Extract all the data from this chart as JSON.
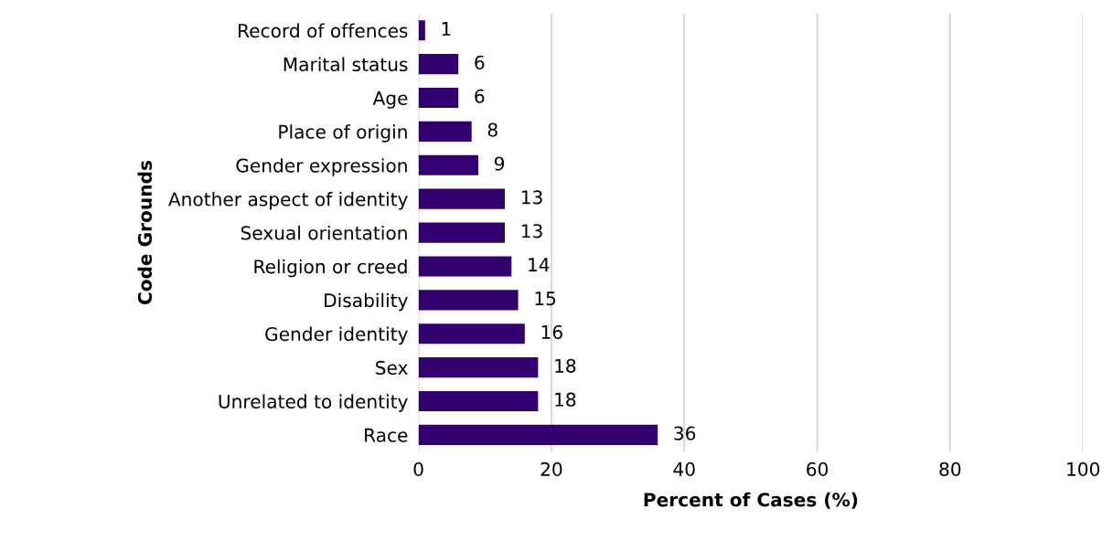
{
  "chart_data": {
    "type": "bar",
    "orientation": "horizontal",
    "xlabel": "Percent of Cases (%)",
    "ylabel": "Code Grounds",
    "categories": [
      "Record of offences",
      "Marital status",
      "Age",
      "Place of origin",
      "Gender expression",
      "Another aspect of identity",
      "Sexual orientation",
      "Religion or creed",
      "Disability",
      "Gender identity",
      "Sex",
      "Unrelated to identity",
      "Race"
    ],
    "values": [
      1,
      6,
      6,
      8,
      9,
      13,
      13,
      14,
      15,
      16,
      18,
      18,
      36
    ],
    "color": "#330070",
    "xlim": [
      0,
      100
    ],
    "xticks": [
      0,
      20,
      40,
      60,
      80,
      100
    ],
    "grid": "x",
    "data_labels": true
  }
}
